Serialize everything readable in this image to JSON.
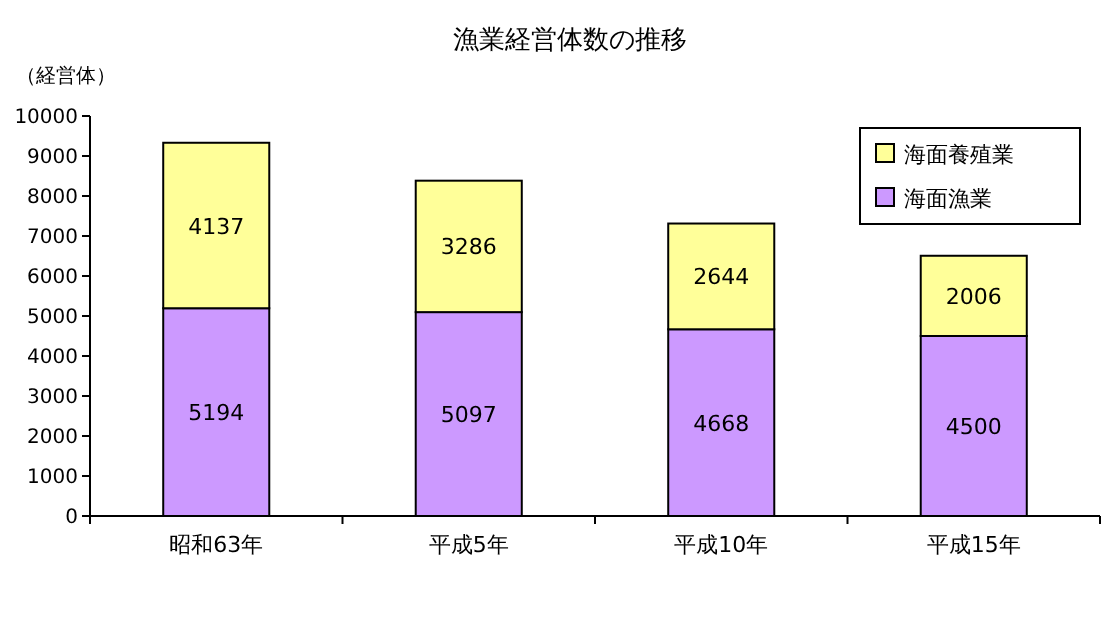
{
  "chart_data": {
    "type": "bar",
    "stacked": true,
    "title": "漁業経営体数の推移",
    "ylabel": "（経営体）",
    "categories": [
      "昭和63年",
      "平成5年",
      "平成10年",
      "平成15年"
    ],
    "series": [
      {
        "name": "海面漁業",
        "color": "#cc99ff",
        "values": [
          5194,
          5097,
          4668,
          4500
        ]
      },
      {
        "name": "海面養殖業",
        "color": "#ffff99",
        "values": [
          4137,
          3286,
          2644,
          2006
        ]
      }
    ],
    "ylim": [
      0,
      10000
    ],
    "yticks": [
      0,
      1000,
      2000,
      3000,
      4000,
      5000,
      6000,
      7000,
      8000,
      9000,
      10000
    ],
    "data_labels": true,
    "legend": "top right",
    "grid": false
  }
}
